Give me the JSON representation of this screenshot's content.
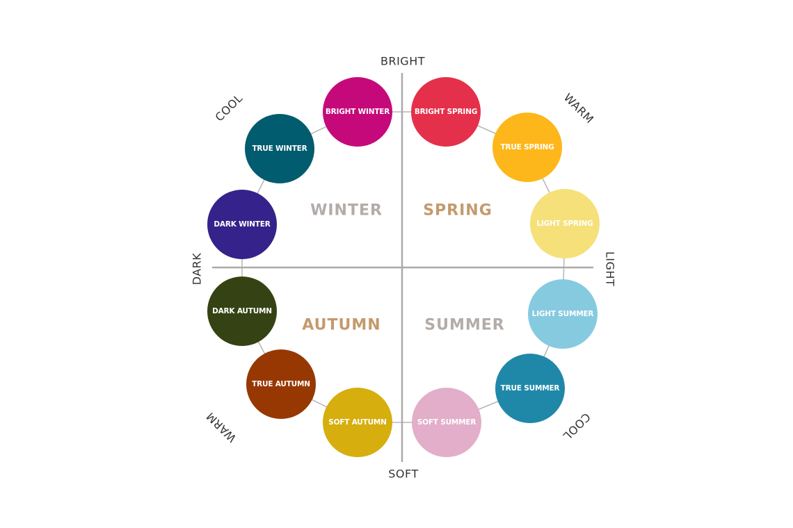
{
  "axes": {
    "top": "BRIGHT",
    "bottom": "SOFT",
    "left": "DARK",
    "right": "LIGHT",
    "top_left": "COOL",
    "top_right": "WARM",
    "bottom_left": "WARM",
    "bottom_right": "COOL"
  },
  "seasons": {
    "winter": {
      "label": "WINTER",
      "color": "#b3aca8"
    },
    "spring": {
      "label": "SPRING",
      "color": "#c49a6c"
    },
    "autumn": {
      "label": "AUTUMN",
      "color": "#c49a6c"
    },
    "summer": {
      "label": "SUMMER",
      "color": "#b3aca8"
    }
  },
  "line_color": "#b5b5b5",
  "palettes": [
    {
      "label": "BRIGHT WINTER",
      "color": "#c6097a"
    },
    {
      "label": "BRIGHT SPRING",
      "color": "#e5304b"
    },
    {
      "label": "TRUE SPRING",
      "color": "#fdb71a"
    },
    {
      "label": "LIGHT SPRING",
      "color": "#f6e07a"
    },
    {
      "label": "LIGHT SUMMER",
      "color": "#86cae0"
    },
    {
      "label": "TRUE SUMMER",
      "color": "#1f88a9"
    },
    {
      "label": "SOFT SUMMER",
      "color": "#e2aec9"
    },
    {
      "label": "SOFT AUTUMN",
      "color": "#d6ae0e"
    },
    {
      "label": "TRUE AUTUMN",
      "color": "#973803"
    },
    {
      "label": "DARK AUTUMN",
      "color": "#354213"
    },
    {
      "label": "DARK WINTER",
      "color": "#35228a"
    },
    {
      "label": "TRUE WINTER",
      "color": "#005c6e"
    }
  ]
}
